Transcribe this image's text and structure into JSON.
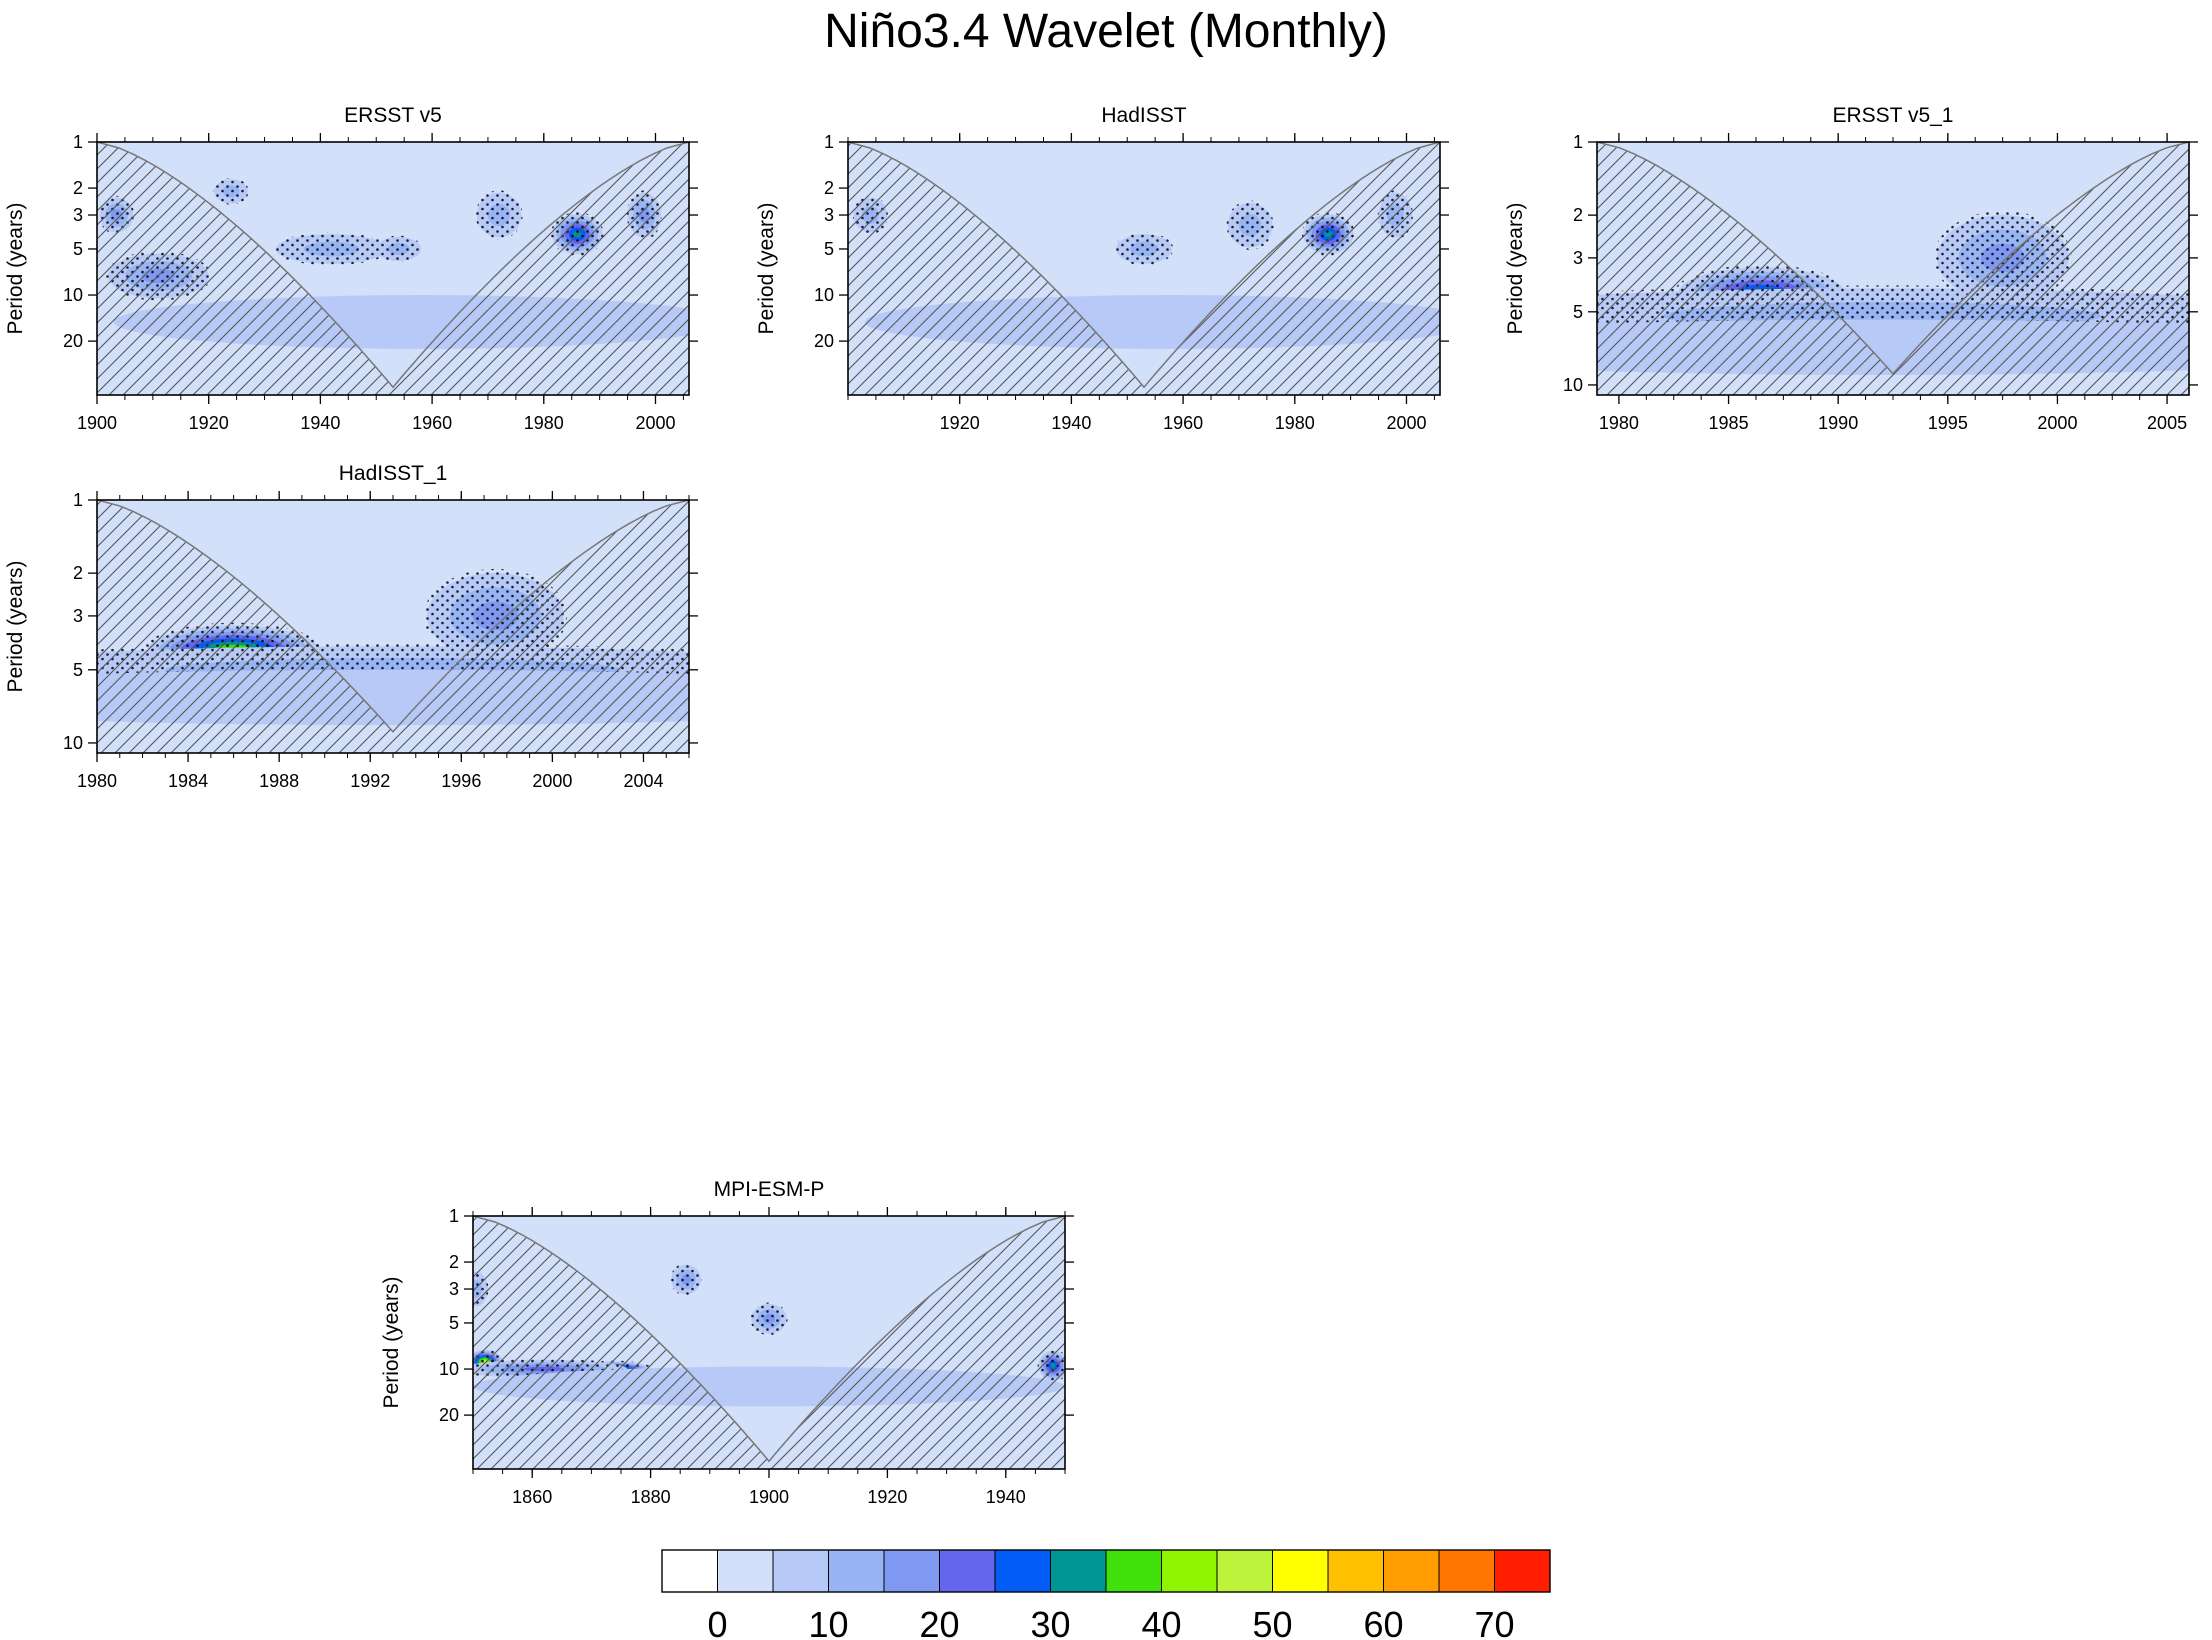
{
  "title": "Niño3.4 Wavelet (Monthly)",
  "colorbar": {
    "colors": [
      "#ffffff",
      "#d3e0fa",
      "#b7c9f7",
      "#97b4f5",
      "#7f98f1",
      "#6366ee",
      "#045cf7",
      "#009695",
      "#40e10a",
      "#8ef400",
      "#bbf43a",
      "#fefe00",
      "#fec000",
      "#ff9d00",
      "#ff7700",
      "#ff1f00"
    ],
    "labels": [
      "0",
      "10",
      "20",
      "30",
      "40",
      "50",
      "60",
      "70"
    ],
    "label_edges": [
      1,
      3,
      5,
      7,
      9,
      11,
      13,
      15
    ]
  },
  "chart_data": [
    {
      "type": "heatmap",
      "title": "ERSST v5",
      "ylabel": "Period (years)",
      "xlim": [
        1900,
        2006
      ],
      "ylim": [
        1,
        45
      ],
      "xticks": [
        1900,
        1920,
        1940,
        1960,
        1980,
        2000
      ],
      "xtick_labels": [
        "1900",
        "1920",
        "1940",
        "1960",
        "1980",
        "2000"
      ],
      "yticks": [
        1,
        2,
        3,
        5,
        10,
        20
      ],
      "ytick_labels": [
        "1",
        "2",
        "3",
        "5",
        "10",
        "20"
      ],
      "coi_min": [
        1953,
        40
      ],
      "background_level": 1,
      "blobs": [
        {
          "x": 1911,
          "y": 7.5,
          "sx": 9,
          "sy": 1.4,
          "level": 4
        },
        {
          "x": 1903.5,
          "y": 3,
          "sx": 3,
          "sy": 1.3,
          "level": 4
        },
        {
          "x": 1924,
          "y": 2.1,
          "sx": 3,
          "sy": 1.2,
          "level": 3
        },
        {
          "x": 1942,
          "y": 5,
          "sx": 10,
          "sy": 1.25,
          "level": 3
        },
        {
          "x": 1954,
          "y": 5,
          "sx": 4,
          "sy": 1.2,
          "level": 3
        },
        {
          "x": 1972,
          "y": 3,
          "sx": 4,
          "sy": 1.4,
          "level": 3
        },
        {
          "x": 1986,
          "y": 4,
          "sx": 4.5,
          "sy": 1.35,
          "level": 7
        },
        {
          "x": 1998,
          "y": 3,
          "sx": 3,
          "sy": 1.4,
          "level": 4
        },
        {
          "x": 1958,
          "y": 15,
          "sx": 55,
          "sy": 1.5,
          "level": 2
        }
      ]
    },
    {
      "type": "heatmap",
      "title": "HadISST",
      "ylabel": "Period (years)",
      "xlim": [
        1900,
        2006
      ],
      "ylim": [
        1,
        45
      ],
      "xticks": [
        1920,
        1940,
        1960,
        1980,
        2000
      ],
      "xtick_labels": [
        "1920",
        "1940",
        "1960",
        "1980",
        "2000"
      ],
      "yticks": [
        1,
        2,
        3,
        5,
        10,
        20
      ],
      "ytick_labels": [
        "1",
        "2",
        "3",
        "5",
        "10",
        "20"
      ],
      "coi_min": [
        1953,
        40
      ],
      "background_level": 1,
      "blobs": [
        {
          "x": 1904,
          "y": 3,
          "sx": 3,
          "sy": 1.3,
          "level": 3
        },
        {
          "x": 1953,
          "y": 5,
          "sx": 5,
          "sy": 1.25,
          "level": 3
        },
        {
          "x": 1972,
          "y": 3.5,
          "sx": 4,
          "sy": 1.4,
          "level": 3
        },
        {
          "x": 1986,
          "y": 4,
          "sx": 4.5,
          "sy": 1.35,
          "level": 7
        },
        {
          "x": 1998,
          "y": 3,
          "sx": 3,
          "sy": 1.4,
          "level": 3
        },
        {
          "x": 1958,
          "y": 15,
          "sx": 55,
          "sy": 1.5,
          "level": 2
        }
      ]
    },
    {
      "type": "heatmap",
      "title": "ERSST v5_1",
      "ylabel": "Period (years)",
      "xlim": [
        1979,
        2006
      ],
      "ylim": [
        1,
        11
      ],
      "xticks": [
        1980,
        1985,
        1990,
        1995,
        2000,
        2005
      ],
      "xtick_labels": [
        "1980",
        "1985",
        "1990",
        "1995",
        "2000",
        "2005"
      ],
      "yticks": [
        1,
        2,
        3,
        5,
        10
      ],
      "ytick_labels": [
        "1",
        "2",
        "3",
        "5",
        "10"
      ],
      "coi_min": [
        1992.5,
        9
      ],
      "background_level": 1,
      "blobs": [
        {
          "x": 1986.5,
          "y": 4.2,
          "sx": 3.8,
          "sy": 1.28,
          "level": 7
        },
        {
          "x": 1997.5,
          "y": 3,
          "sx": 3,
          "sy": 1.5,
          "level": 4
        },
        {
          "x": 1992,
          "y": 5.2,
          "sx": 20,
          "sy": 1.3,
          "level": 3
        },
        {
          "x": 1992,
          "y": 7,
          "sx": 25,
          "sy": 1.3,
          "level": 2
        }
      ]
    },
    {
      "type": "heatmap",
      "title": "HadISST_1",
      "ylabel": "Period (years)",
      "xlim": [
        1980,
        2006
      ],
      "ylim": [
        1,
        11
      ],
      "xticks": [
        1980,
        1984,
        1988,
        1992,
        1996,
        2000,
        2004
      ],
      "xtick_labels": [
        "1980",
        "1984",
        "1988",
        "1992",
        "1996",
        "2000",
        "2004"
      ],
      "yticks": [
        1,
        2,
        3,
        5,
        10
      ],
      "ytick_labels": [
        "1",
        "2",
        "3",
        "5",
        "10"
      ],
      "coi_min": [
        1993,
        9
      ],
      "background_level": 1,
      "blobs": [
        {
          "x": 1986,
          "y": 4.2,
          "sx": 3.8,
          "sy": 1.28,
          "level": 9
        },
        {
          "x": 1997.5,
          "y": 3,
          "sx": 3,
          "sy": 1.5,
          "level": 4
        },
        {
          "x": 1993,
          "y": 5,
          "sx": 20,
          "sy": 1.25,
          "level": 3
        },
        {
          "x": 1993,
          "y": 6.5,
          "sx": 25,
          "sy": 1.3,
          "level": 2
        }
      ]
    },
    {
      "type": "heatmap",
      "title": "MPI-ESM-P",
      "ylabel": "Period (years)",
      "xlim": [
        1850,
        1950
      ],
      "ylim": [
        1,
        45
      ],
      "xticks": [
        1860,
        1880,
        1900,
        1920,
        1940
      ],
      "xtick_labels": [
        "1860",
        "1880",
        "1900",
        "1920",
        "1940"
      ],
      "yticks": [
        1,
        2,
        3,
        5,
        10,
        20
      ],
      "ytick_labels": [
        "1",
        "2",
        "3",
        "5",
        "10",
        "20"
      ],
      "coi_min": [
        1900,
        40
      ],
      "background_level": 1,
      "blobs": [
        {
          "x": 1852,
          "y": 9,
          "sx": 3,
          "sy": 1.2,
          "level": 10
        },
        {
          "x": 1874,
          "y": 10,
          "sx": 6,
          "sy": 1.12,
          "level": 9
        },
        {
          "x": 1862,
          "y": 10,
          "sx": 14,
          "sy": 1.15,
          "level": 5
        },
        {
          "x": 1886,
          "y": 2.6,
          "sx": 2.5,
          "sy": 1.25,
          "level": 4
        },
        {
          "x": 1850.5,
          "y": 3,
          "sx": 2,
          "sy": 1.3,
          "level": 3
        },
        {
          "x": 1900,
          "y": 4.7,
          "sx": 3,
          "sy": 1.25,
          "level": 4
        },
        {
          "x": 1948,
          "y": 9.5,
          "sx": 2.5,
          "sy": 1.25,
          "level": 7
        },
        {
          "x": 1900,
          "y": 13,
          "sx": 50,
          "sy": 1.35,
          "level": 2
        }
      ]
    }
  ]
}
